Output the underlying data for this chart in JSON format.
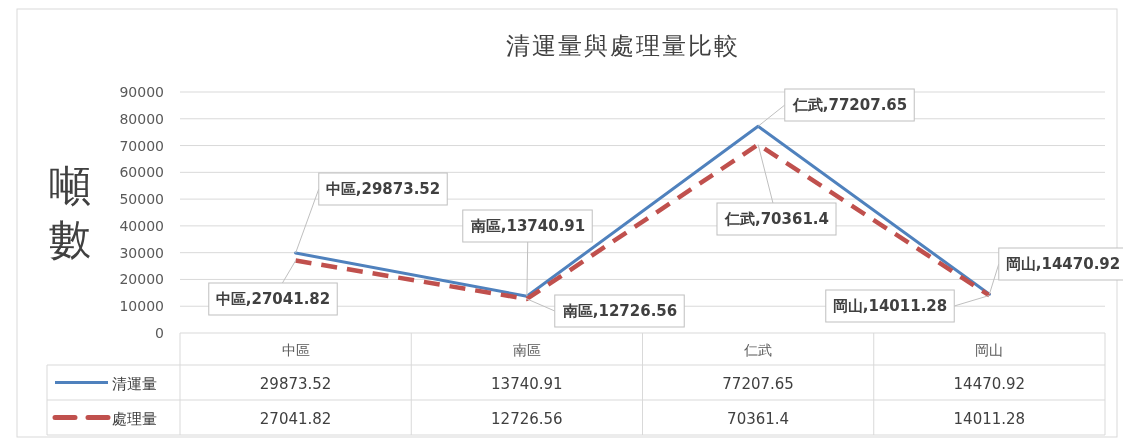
{
  "chart_data": {
    "type": "line",
    "title": "清運量與處理量比較",
    "ylabel": "噸數",
    "categories": [
      "中區",
      "南區",
      "仁武",
      "岡山"
    ],
    "series": [
      {
        "name": "清運量",
        "color": "#4f81bd",
        "line_style": "solid",
        "values": [
          29873.52,
          13740.91,
          77207.65,
          14470.92
        ]
      },
      {
        "name": "處理量",
        "color": "#c0504d",
        "line_style": "dashed",
        "values": [
          27041.82,
          12726.56,
          70361.4,
          14011.28
        ]
      }
    ],
    "annotations": [
      {
        "text": "中區,29873.52",
        "x": "中區",
        "y": 29873.52
      },
      {
        "text": "南區,13740.91",
        "x": "南區",
        "y": 13740.91
      },
      {
        "text": "仁武,77207.65",
        "x": "仁武",
        "y": 77207.65
      },
      {
        "text": "岡山,14470.92",
        "x": "岡山",
        "y": 14470.92
      },
      {
        "text": "中區,27041.82",
        "x": "中區",
        "y": 27041.82
      },
      {
        "text": "南區,12726.56",
        "x": "南區",
        "y": 12726.56
      },
      {
        "text": "仁武,70361.4",
        "x": "仁武",
        "y": 70361.4
      },
      {
        "text": "岡山,14011.28",
        "x": "岡山",
        "y": 14011.28
      }
    ],
    "ylim": [
      0,
      90000
    ],
    "yticks": [
      0,
      10000,
      20000,
      30000,
      40000,
      50000,
      60000,
      70000,
      80000,
      90000
    ],
    "grid": "y",
    "marker": "none",
    "data_labels": true,
    "legend": "bottom"
  }
}
